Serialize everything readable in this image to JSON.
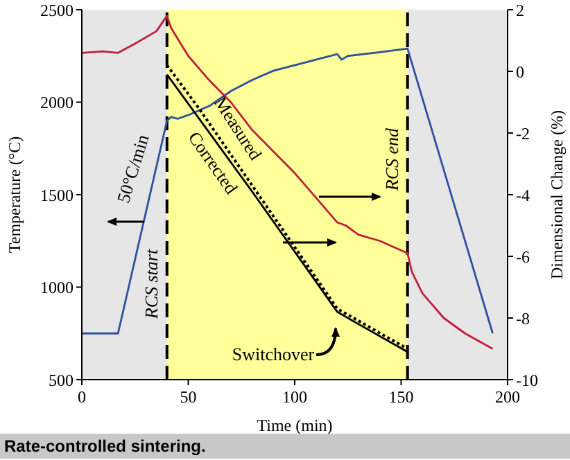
{
  "chart_data": {
    "type": "line",
    "xlabel": "Time (min)",
    "ylabel": "Temperature (°C)",
    "y2label": "Dimensional Change (%)",
    "xlim": [
      0,
      200
    ],
    "xticks": [
      0,
      50,
      100,
      150,
      200
    ],
    "ylim": [
      500,
      2500
    ],
    "yticks": [
      500,
      1000,
      1500,
      2000,
      2500
    ],
    "y2lim": [
      -10,
      2
    ],
    "y2ticks": [
      -10,
      -8,
      -6,
      -4,
      -2,
      0,
      2
    ],
    "grid": false,
    "marker": "none",
    "series": [
      {
        "color": "#3050a0",
        "axis": "y",
        "line_style": "solid",
        "x": [
          0,
          17,
          40,
          42,
          45,
          50,
          60,
          70,
          80,
          90,
          100,
          110,
          120,
          122,
          125,
          140,
          153,
          193
        ],
        "values": [
          750,
          750,
          1900,
          1920,
          1910,
          1930,
          1980,
          2060,
          2120,
          2170,
          2200,
          2230,
          2260,
          2230,
          2250,
          2270,
          2290,
          750
        ]
      },
      {
        "name": "Measured",
        "color": "#c0203a",
        "axis": "y2",
        "line_style": "solid",
        "x": [
          0,
          10,
          17,
          25,
          35,
          40,
          42,
          50,
          60,
          70,
          80,
          90,
          100,
          110,
          120,
          124,
          130,
          140,
          153,
          155,
          160,
          170,
          180,
          193
        ],
        "values": [
          0.6,
          0.65,
          0.6,
          0.9,
          1.3,
          1.8,
          1.4,
          0.5,
          -0.3,
          -1.0,
          -1.9,
          -2.6,
          -3.3,
          -4.1,
          -4.9,
          -5.0,
          -5.3,
          -5.5,
          -5.9,
          -6.5,
          -7.2,
          -8.0,
          -8.5,
          -9.0
        ]
      },
      {
        "name": "Corrected",
        "color": "#000000",
        "axis": "y2",
        "line_style": "solid",
        "x": [
          40,
          80,
          120,
          130,
          153
        ],
        "values": [
          -0.1,
          -3.9,
          -7.8,
          -8.2,
          -9.1
        ]
      },
      {
        "color": "#000000",
        "axis": "y2",
        "line_style": "dotted",
        "x": [
          40,
          55,
          120,
          153
        ],
        "values": [
          0.2,
          -1.2,
          -7.7,
          -9.0
        ]
      }
    ],
    "bands": [
      {
        "axis": "x",
        "from": 0,
        "to": 40,
        "color": "#e6e6e6"
      },
      {
        "axis": "x",
        "from": 40,
        "to": 153,
        "color": "#ffff99"
      },
      {
        "axis": "x",
        "from": 153,
        "to": 200,
        "color": "#e6e6e6"
      }
    ],
    "ref_lines": [
      {
        "axis": "x",
        "value": 40,
        "label": "RCS start",
        "line_style": "dashed",
        "color": "#000000"
      },
      {
        "axis": "x",
        "value": 153,
        "label": "RCS end",
        "line_style": "dashed",
        "color": "#000000"
      }
    ],
    "annotations": [
      "50°C/min",
      "Switchover",
      "Rate-controlled sintering."
    ]
  }
}
